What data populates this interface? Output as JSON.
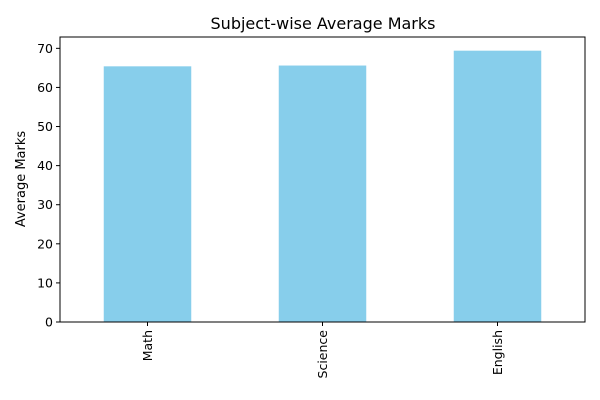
{
  "chart_data": {
    "type": "bar",
    "title": "Subject-wise Average Marks",
    "xlabel": "",
    "ylabel": "Average Marks",
    "categories": [
      "Math",
      "Science",
      "English"
    ],
    "values": [
      65.4,
      65.6,
      69.4
    ],
    "ylim": [
      0,
      72.9
    ],
    "yticks": [
      0,
      10,
      20,
      30,
      40,
      50,
      60,
      70
    ],
    "grid": false,
    "legend": "none",
    "bar_color": "#87ceeb",
    "x_tick_rotation": "vertical"
  }
}
